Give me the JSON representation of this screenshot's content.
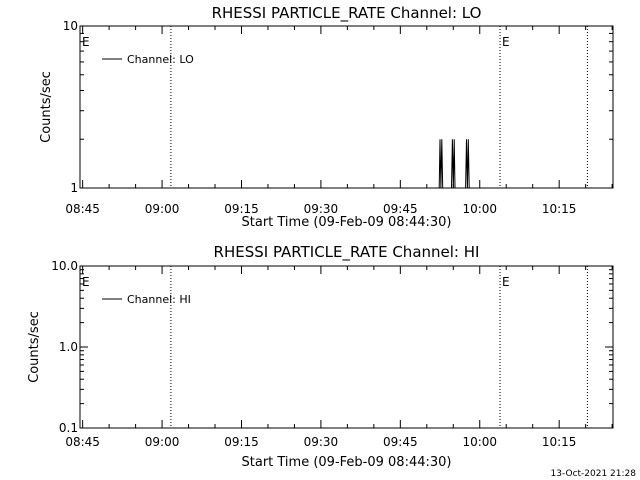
{
  "footer_timestamp": "13-Oct-2021 21:28",
  "chart_data": [
    {
      "type": "line",
      "title": "RHESSI PARTICLE_RATE Channel: LO",
      "xlabel": "Start Time (09-Feb-09 08:44:30)",
      "ylabel": "Counts/sec",
      "y_scale": "log",
      "ylim": [
        1,
        10
      ],
      "y_ticks": [
        1,
        10
      ],
      "y_tick_labels": [
        "1",
        "10"
      ],
      "xlim": [
        "08:44:30",
        "10:25:10"
      ],
      "x_ticks": [
        "08:45",
        "09:00",
        "09:15",
        "09:30",
        "09:45",
        "10:00",
        "10:15"
      ],
      "x_tick_labels": [
        "08:45",
        "09:00",
        "09:15",
        "09:30",
        "09:45",
        "10:00",
        "10:15"
      ],
      "event_lines": [
        {
          "time": "09:01:40",
          "label": ""
        },
        {
          "time": "10:03:50",
          "label": "E"
        },
        {
          "time": "10:20:20",
          "label": ""
        }
      ],
      "left_marker": "E",
      "legend_position": "top-left",
      "series": [
        {
          "name": "Channel: LO",
          "x": [
            "09:52:20",
            "09:52:30",
            "09:52:40",
            "09:52:50",
            "09:53:00",
            "09:54:40",
            "09:54:50",
            "09:55:00",
            "09:55:10",
            "09:55:20",
            "09:57:20",
            "09:57:30",
            "09:57:40",
            "09:57:50",
            "09:58:00"
          ],
          "y": [
            1,
            2,
            1,
            2,
            1,
            1,
            2,
            1,
            2,
            1,
            1,
            2,
            1,
            2,
            1
          ]
        }
      ]
    },
    {
      "type": "line",
      "title": "RHESSI PARTICLE_RATE Channel: HI",
      "xlabel": "Start Time (09-Feb-09 08:44:30)",
      "ylabel": "Counts/sec",
      "y_scale": "log",
      "ylim": [
        0.1,
        10
      ],
      "y_ticks": [
        0.1,
        1,
        10
      ],
      "y_tick_labels": [
        "0.1",
        "1.0",
        "10.0"
      ],
      "xlim": [
        "08:44:30",
        "10:25:10"
      ],
      "x_ticks": [
        "08:45",
        "09:00",
        "09:15",
        "09:30",
        "09:45",
        "10:00",
        "10:15"
      ],
      "x_tick_labels": [
        "08:45",
        "09:00",
        "09:15",
        "09:30",
        "09:45",
        "10:00",
        "10:15"
      ],
      "event_lines": [
        {
          "time": "09:01:40",
          "label": ""
        },
        {
          "time": "10:03:50",
          "label": "E"
        },
        {
          "time": "10:20:20",
          "label": ""
        }
      ],
      "left_marker": "E",
      "legend_position": "top-left",
      "series": [
        {
          "name": "Channel: HI",
          "x": [],
          "y": []
        }
      ]
    }
  ]
}
